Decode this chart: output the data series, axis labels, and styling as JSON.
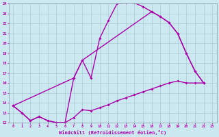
{
  "xlabel": "Windchill (Refroidissement éolien,°C)",
  "xlim": [
    -0.5,
    23.5
  ],
  "ylim": [
    12,
    24
  ],
  "xticks": [
    0,
    1,
    2,
    3,
    4,
    5,
    6,
    7,
    8,
    9,
    10,
    11,
    12,
    13,
    14,
    15,
    16,
    17,
    18,
    19,
    20,
    21,
    22,
    23
  ],
  "yticks": [
    12,
    13,
    14,
    15,
    16,
    17,
    18,
    19,
    20,
    21,
    22,
    23,
    24
  ],
  "bg_color": "#cce8f0",
  "grid_color": "#aaccd8",
  "line_color": "#aa00aa",
  "line_width": 1.0,
  "marker": "D",
  "marker_size": 2.0,
  "curve1_x": [
    0,
    1,
    2,
    3,
    4,
    5,
    6,
    7,
    8,
    9,
    10,
    11,
    12,
    13,
    14,
    15,
    16,
    17,
    18,
    19,
    20,
    21,
    22
  ],
  "curve1_y": [
    13.7,
    13.0,
    12.2,
    12.6,
    12.2,
    12.0,
    12.0,
    16.5,
    18.3,
    16.5,
    20.5,
    22.3,
    24.0,
    24.1,
    24.1,
    23.7,
    23.2,
    22.7,
    22.1,
    21.0,
    19.0,
    17.2,
    16.0
  ],
  "curve2_x": [
    0,
    1,
    2,
    3,
    4,
    5,
    6,
    7,
    8,
    9,
    10,
    11,
    12,
    13,
    14,
    15,
    16,
    17,
    18,
    19,
    20,
    21,
    22
  ],
  "curve2_y": [
    13.7,
    13.0,
    12.2,
    12.6,
    12.2,
    12.0,
    12.0,
    12.5,
    13.3,
    13.2,
    13.5,
    13.8,
    14.2,
    14.5,
    14.8,
    15.1,
    15.4,
    15.7,
    16.0,
    16.2,
    16.0,
    16.0,
    16.0
  ],
  "curve3_x": [
    0,
    7,
    8,
    16,
    17,
    18,
    19,
    20,
    21,
    22
  ],
  "curve3_y": [
    13.7,
    16.5,
    18.3,
    23.2,
    22.7,
    22.1,
    21.0,
    19.0,
    17.2,
    16.0
  ]
}
